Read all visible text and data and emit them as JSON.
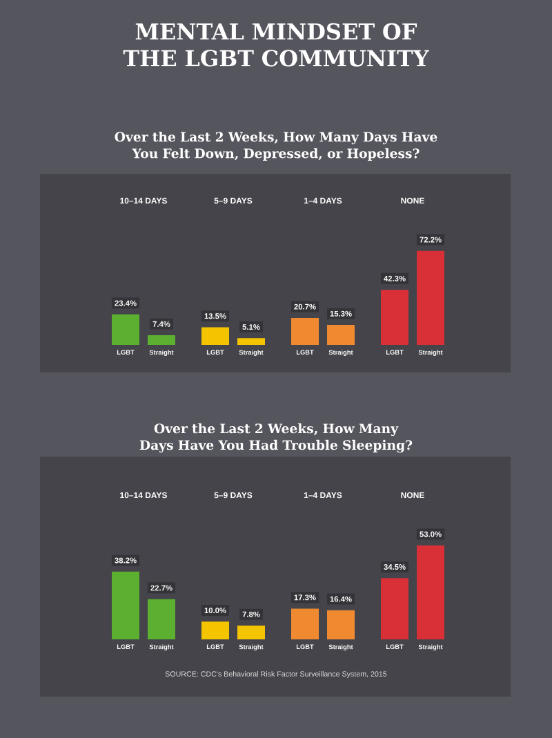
{
  "chart_data": [
    {
      "type": "bar",
      "title": "MENTAL MINDSET OF THE LGBT COMMUNITY",
      "subtitle": "Over the Last 2 Weeks, How Many Days Have You Felt Down, Depressed, or Hopeless?",
      "categories": [
        "10–14 DAYS",
        "5–9 DAYS",
        "1–4 DAYS",
        "NONE"
      ],
      "series": [
        {
          "name": "LGBT",
          "colors": [
            "#5bb030",
            "#f5c400",
            "#f08a30",
            "#d93038"
          ],
          "values": [
            23.4,
            13.5,
            20.7,
            42.3
          ],
          "value_labels": [
            "23.4%",
            "13.5%",
            "20.7%",
            "42.3%"
          ]
        },
        {
          "name": "Straight",
          "colors": [
            "#5bb030",
            "#f5c400",
            "#f08a30",
            "#d93038"
          ],
          "values": [
            7.4,
            5.1,
            15.3,
            72.2
          ],
          "value_labels": [
            "7.4%",
            "5.1%",
            "15.3%",
            "72.2%"
          ]
        }
      ]
    },
    {
      "type": "bar",
      "title": "Over the Last 2 Weeks, How Many Days Have You Had Trouble Sleeping?",
      "categories": [
        "10–14 DAYS",
        "5–9 DAYS",
        "1–4 DAYS",
        "NONE"
      ],
      "series": [
        {
          "name": "LGBT",
          "colors": [
            "#5bb030",
            "#f5c400",
            "#f08a30",
            "#d93038"
          ],
          "values": [
            38.2,
            10.0,
            17.3,
            34.5
          ],
          "value_labels": [
            "38.2%",
            "10.0%",
            "17.3%",
            "34.5%"
          ]
        },
        {
          "name": "Straight",
          "colors": [
            "#5bb030",
            "#f5c400",
            "#f08a30",
            "#d93038"
          ],
          "values": [
            22.7,
            7.8,
            16.4,
            53.0
          ],
          "value_labels": [
            "22.7%",
            "7.8%",
            "16.4%",
            "53.0%"
          ]
        }
      ],
      "annotations": [
        "SOURCE: CDC's Behavioral Risk Factor Surveillance System, 2015"
      ]
    }
  ]
}
